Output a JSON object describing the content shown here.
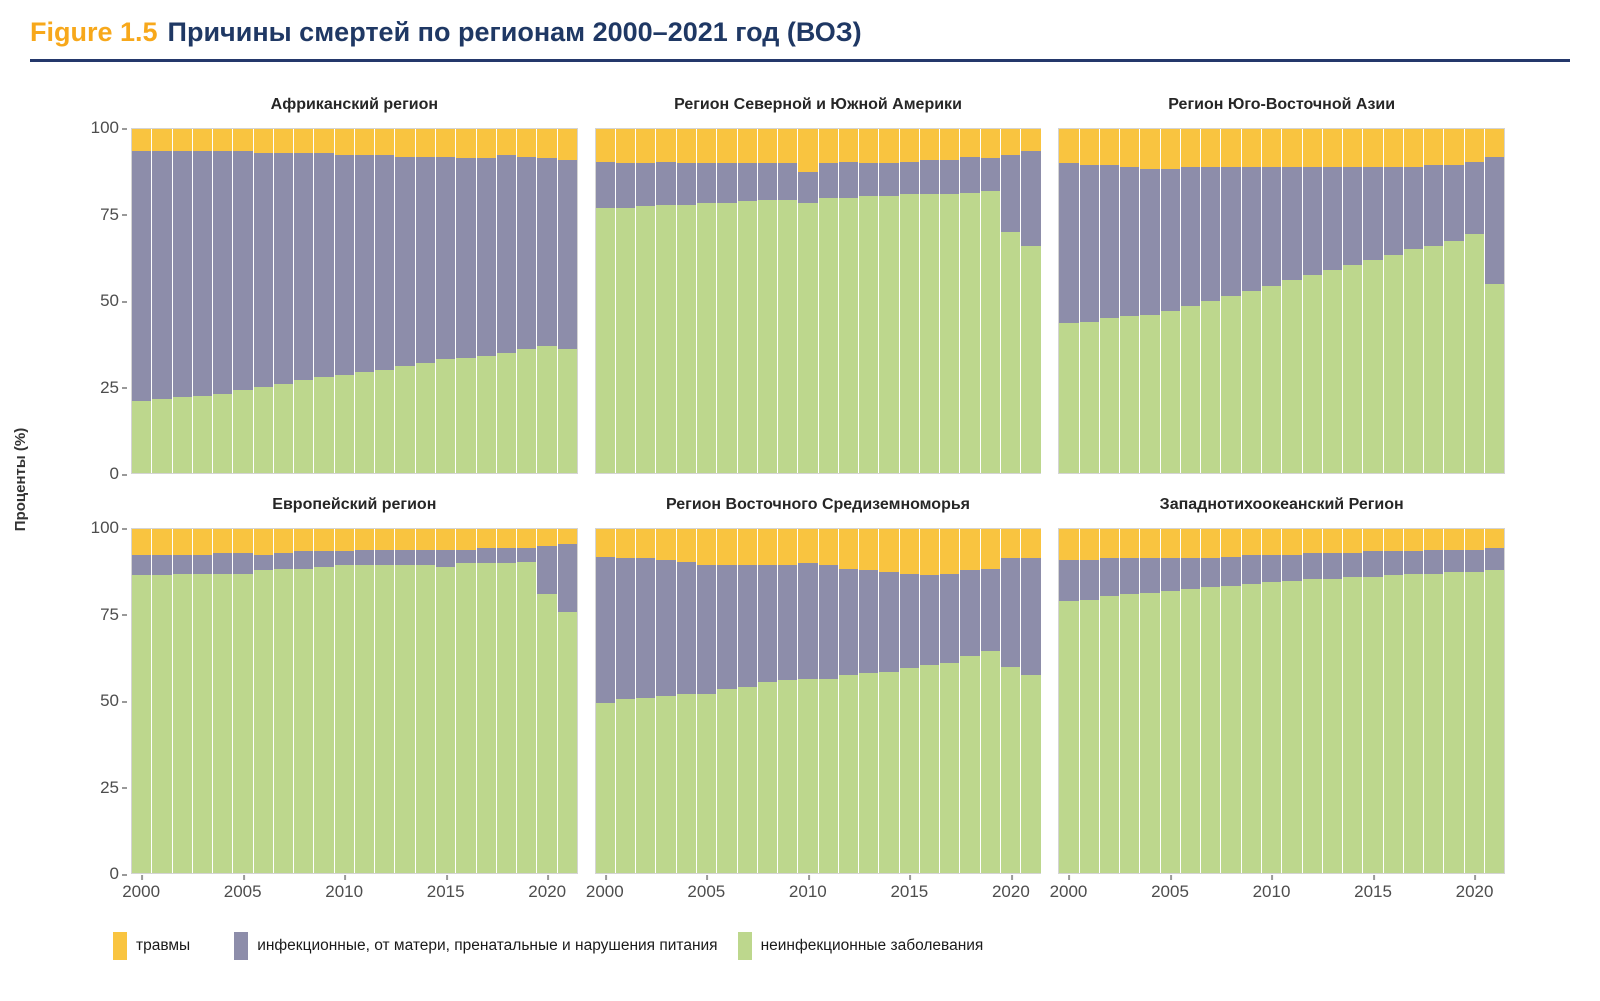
{
  "header": {
    "figure_label": "Figure 1.5",
    "title": "Причины смертей по регионам 2000–2021 год (ВОЗ)"
  },
  "y_axis": {
    "label": "Проценты (%)",
    "ticks": [
      "100",
      "75",
      "50",
      "25",
      "0"
    ]
  },
  "x_axis": {
    "ticks": [
      2000,
      2005,
      2010,
      2015,
      2020
    ]
  },
  "colors": {
    "injuries": "#F9C440",
    "infectious": "#8D8DAA",
    "ncd": "#BDD78D",
    "figure_label": "#F7A81B",
    "title": "#1F3864",
    "rule": "#24386B",
    "panel_border": "#D4D4D4",
    "tick_text": "#4D4D4D"
  },
  "legend": [
    {
      "key": "injuries",
      "label": "травмы",
      "color": "#F9C440"
    },
    {
      "key": "infectious",
      "label": "инфекционные, от матери, пренатальные и нарушения питания",
      "color": "#8D8DAA"
    },
    {
      "key": "ncd",
      "label": "неинфекционные заболевания",
      "color": "#BDD78D"
    }
  ],
  "chart_data": {
    "type": "bar",
    "stacked": true,
    "unit": "percent",
    "ylabel": "Проценты (%)",
    "ylim": [
      0,
      100
    ],
    "y_ticks": [
      0,
      25,
      50,
      75,
      100
    ],
    "x_ticks": [
      2000,
      2005,
      2010,
      2015,
      2020
    ],
    "legend_position": "bottom",
    "grid": false,
    "years": [
      2000,
      2001,
      2002,
      2003,
      2004,
      2005,
      2006,
      2007,
      2008,
      2009,
      2010,
      2011,
      2012,
      2013,
      2014,
      2015,
      2016,
      2017,
      2018,
      2019,
      2020,
      2021
    ],
    "series_order_top_to_bottom": [
      "injuries",
      "infectious",
      "ncd"
    ],
    "series_labels": {
      "injuries": "травмы",
      "infectious": "инфекционные, от матери, пренатальные и нарушения питания",
      "ncd": "неинфекционные заболевания"
    },
    "panels": [
      {
        "title": "Африканский регион",
        "ncd": [
          21,
          21.5,
          22,
          22.5,
          23,
          24,
          25,
          26,
          27,
          28,
          28.5,
          29.5,
          30,
          31,
          32,
          33,
          33.5,
          34,
          35,
          36,
          37,
          36
        ],
        "infectious": [
          72.5,
          72,
          71.5,
          71,
          70.5,
          69.5,
          68,
          67,
          66,
          65,
          64,
          63,
          62.5,
          61,
          60,
          59,
          58,
          57.5,
          57.5,
          56,
          54.5,
          55
        ],
        "injuries": [
          6.5,
          6.5,
          6.5,
          6.5,
          6.5,
          6.5,
          7,
          7,
          7,
          7,
          7.5,
          7.5,
          7.5,
          8,
          8,
          8,
          8.5,
          8.5,
          7.5,
          8,
          8.5,
          9
        ]
      },
      {
        "title": "Регион Северной и Южной Америки",
        "ncd": [
          77,
          77,
          77.5,
          78,
          78,
          78.5,
          78.5,
          79,
          79.5,
          79.5,
          78.5,
          80,
          80,
          80.5,
          80.5,
          81,
          81,
          81,
          81.5,
          82,
          70,
          66
        ],
        "infectious": [
          13.5,
          13,
          12.5,
          12.5,
          12,
          11.5,
          11.5,
          11,
          10.5,
          10.5,
          9,
          10,
          10.5,
          9.5,
          9.5,
          9.5,
          10,
          10,
          10.5,
          9.5,
          22.5,
          27.5
        ],
        "injuries": [
          9.5,
          10,
          10,
          9.5,
          10,
          10,
          10,
          10,
          10,
          10,
          12.5,
          10,
          9.5,
          10,
          10,
          9.5,
          9,
          9,
          8,
          8.5,
          7.5,
          6.5
        ]
      },
      {
        "title": "Регион Юго-Восточной Азии",
        "ncd": [
          43.5,
          44,
          45,
          45.5,
          46,
          47,
          48.5,
          50,
          51.5,
          53,
          54.5,
          56,
          57.5,
          59,
          60.5,
          62,
          63.5,
          65,
          66,
          67.5,
          69.5,
          55
        ],
        "infectious": [
          46.5,
          45.5,
          44.5,
          43.5,
          42.5,
          41.5,
          40.5,
          39,
          37.5,
          36,
          34.5,
          33,
          31.5,
          30,
          28.5,
          27,
          25.5,
          24,
          23.5,
          22,
          21,
          37
        ],
        "injuries": [
          10,
          10.5,
          10.5,
          11,
          11.5,
          11.5,
          11,
          11,
          11,
          11,
          11,
          11,
          11,
          11,
          11,
          11,
          11,
          11,
          10.5,
          10.5,
          9.5,
          8
        ]
      },
      {
        "title": "Европейский регион",
        "ncd": [
          86.5,
          86.5,
          87,
          87,
          87,
          87,
          88,
          88.5,
          88.5,
          89,
          89.5,
          89.5,
          89.5,
          89.5,
          89.5,
          89,
          90,
          90,
          90,
          90.5,
          81,
          76
        ],
        "infectious": [
          6,
          6,
          5.5,
          5.5,
          6,
          6,
          4.5,
          4.5,
          5,
          4.5,
          4,
          4.5,
          4.5,
          4.5,
          4.5,
          5,
          4,
          4.5,
          4.5,
          4,
          14,
          19.5
        ],
        "injuries": [
          7.5,
          7.5,
          7.5,
          7.5,
          7,
          7,
          7.5,
          7,
          6.5,
          6.5,
          6.5,
          6,
          6,
          6,
          6,
          6,
          6,
          5.5,
          5.5,
          5.5,
          5,
          4.5
        ]
      },
      {
        "title": "Регион Восточного Средиземноморья",
        "ncd": [
          49.5,
          50.5,
          51,
          51.5,
          52,
          52,
          53.5,
          54,
          55.5,
          56,
          56.5,
          56.5,
          57.5,
          58,
          58.5,
          59.5,
          60.5,
          61,
          63,
          64.5,
          60,
          57.5
        ],
        "infectious": [
          42.5,
          41,
          40.5,
          39.5,
          38.5,
          37.5,
          36,
          35.5,
          34,
          33.5,
          33.5,
          33,
          31,
          30,
          29,
          27.5,
          26,
          26,
          25,
          24,
          31.5,
          34
        ],
        "injuries": [
          8,
          8.5,
          8.5,
          9,
          9.5,
          10.5,
          10.5,
          10.5,
          10.5,
          10.5,
          10,
          10.5,
          11.5,
          12,
          12.5,
          13,
          13.5,
          13,
          12,
          11.5,
          8.5,
          8.5
        ]
      },
      {
        "title": "Западнотихоокеанский Регион",
        "ncd": [
          79,
          79.5,
          80.5,
          81,
          81.5,
          82,
          82.5,
          83,
          83.5,
          84,
          84.5,
          85,
          85.5,
          85.5,
          86,
          86,
          86.5,
          87,
          87,
          87.5,
          87.5,
          88
        ],
        "infectious": [
          12,
          11.5,
          11,
          10.5,
          10,
          9.5,
          9,
          8.5,
          8.5,
          8.5,
          8,
          7.5,
          7.5,
          7.5,
          7,
          7.5,
          7,
          6.5,
          7,
          6.5,
          6.5,
          6.5
        ],
        "injuries": [
          9,
          9,
          8.5,
          8.5,
          8.5,
          8.5,
          8.5,
          8.5,
          8,
          7.5,
          7.5,
          7.5,
          7,
          7,
          7,
          6.5,
          6.5,
          6.5,
          6,
          6,
          6,
          5.5
        ]
      }
    ]
  }
}
